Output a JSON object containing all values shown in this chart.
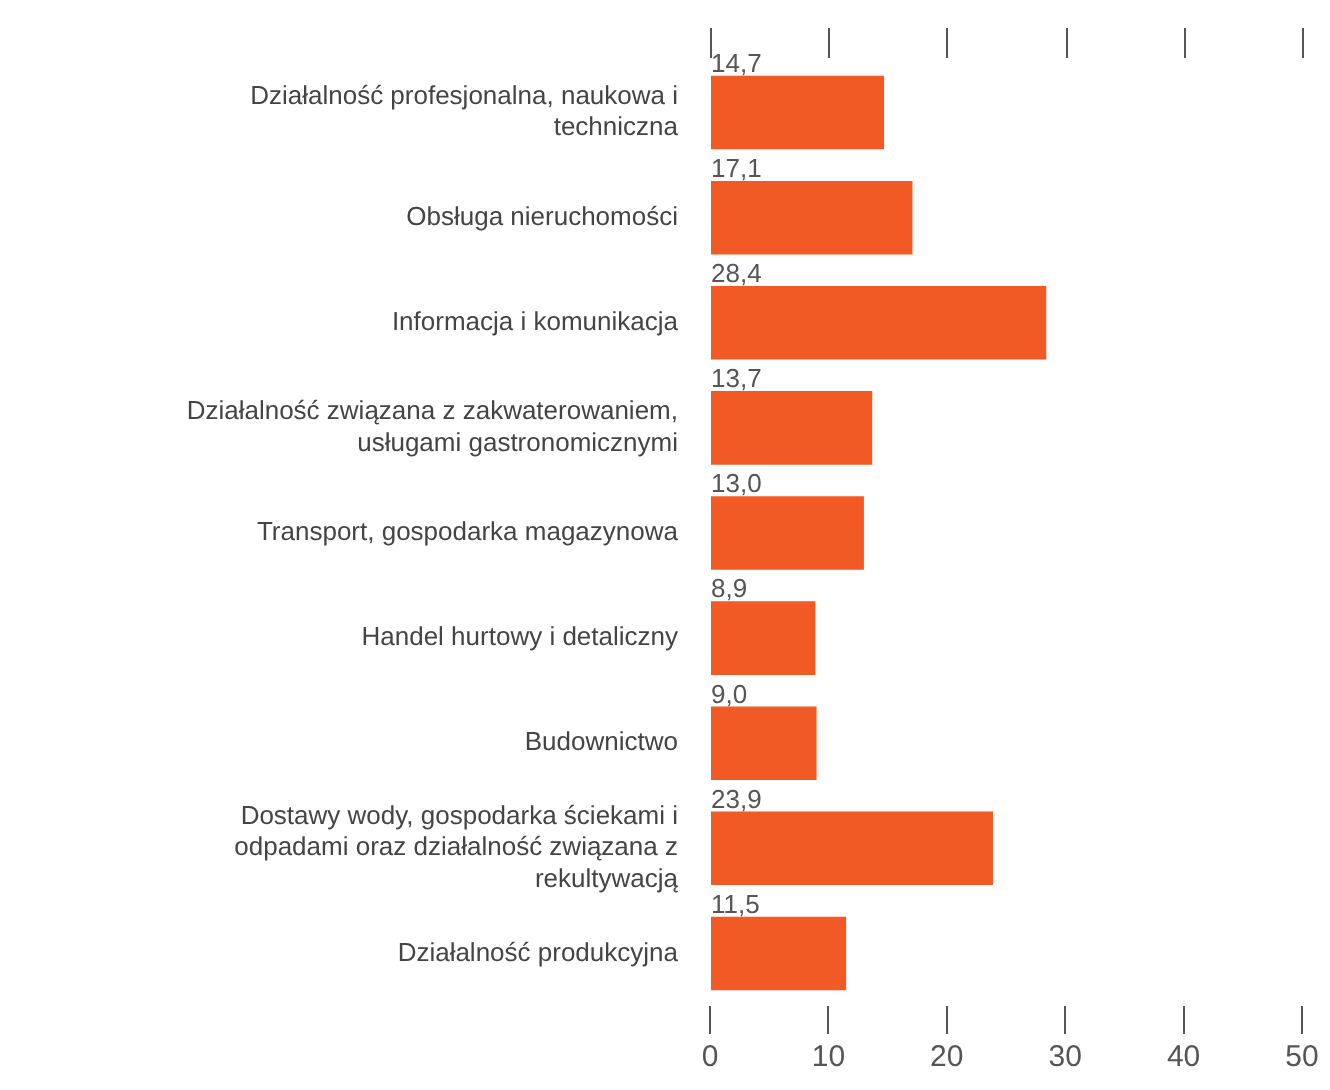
{
  "chart_data": {
    "type": "bar",
    "orientation": "horizontal",
    "categories": [
      "Działalność profesjonalna, naukowa i techniczna",
      "Obsługa nieruchomości",
      "Informacja i komunikacja",
      "Działalność związana z zakwaterowaniem, usługami gastronomicznymi",
      "Transport, gospodarka magazynowa",
      "Handel hurtowy i detaliczny",
      "Budownictwo",
      "Dostawy wody, gospodarka ściekami i odpadami oraz działalność związana z rekultywacją",
      "Działalność produkcyjna"
    ],
    "values": [
      14.7,
      17.1,
      28.4,
      13.7,
      13.0,
      8.9,
      9.0,
      23.9,
      11.5
    ],
    "value_labels": [
      "14,7",
      "17,1",
      "28,4",
      "13,7",
      "13,0",
      "8,9",
      "9,0",
      "23,9",
      "11,5"
    ],
    "color": "#f15a24",
    "xlim": [
      0,
      50
    ],
    "xticks": [
      0,
      10,
      20,
      30,
      40,
      50
    ],
    "grid": false,
    "legend": false
  }
}
